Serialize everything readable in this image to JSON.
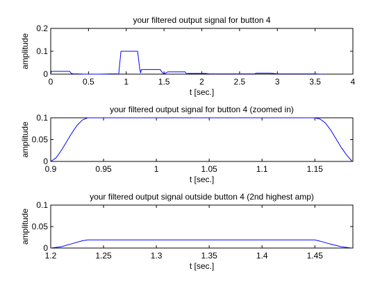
{
  "figure": {
    "background": "#ffffff",
    "line_color": "#0000ff",
    "axis_color": "#000000"
  },
  "chart_data": [
    {
      "type": "line",
      "title": "your filtered output signal for button 4",
      "xlabel": "t [sec.]",
      "ylabel": "amplitude",
      "xlim": [
        0,
        4
      ],
      "ylim": [
        0,
        0.2
      ],
      "xticks": [
        0,
        0.5,
        1,
        1.5,
        2,
        2.5,
        3,
        3.5,
        4
      ],
      "xtick_labels": [
        "0",
        "0.5",
        "1",
        "1.5",
        "2",
        "2.5",
        "3",
        "3.5",
        "4"
      ],
      "yticks": [
        0,
        0.1,
        0.2
      ],
      "ytick_labels": [
        "0",
        "0.1",
        "0.2"
      ],
      "grid": false,
      "series": [
        {
          "color": "#0000ff",
          "x": [
            0.0,
            0.01,
            0.05,
            0.25,
            0.27,
            0.3,
            0.35,
            0.45,
            0.65,
            0.8,
            0.88,
            0.9,
            0.93,
            1.0,
            1.1,
            1.15,
            1.18,
            1.19,
            1.2,
            1.23,
            1.3,
            1.4,
            1.45,
            1.48,
            1.5,
            1.55,
            1.6,
            1.7,
            1.78,
            1.8,
            1.82,
            1.85,
            1.95,
            2.05,
            2.1,
            2.2,
            2.4,
            2.6,
            2.7,
            2.72,
            2.75,
            2.9,
            2.95,
            3.0,
            3.1,
            3.3,
            3.5,
            3.6
          ],
          "y": [
            0.0,
            0.012,
            0.012,
            0.012,
            0.004,
            0.001,
            0.001,
            0.0,
            0.0,
            0.001,
            0.001,
            0.0,
            0.1,
            0.1,
            0.1,
            0.1,
            0.02,
            0.005,
            0.02,
            0.02,
            0.02,
            0.02,
            0.02,
            0.006,
            0.001,
            0.01,
            0.01,
            0.01,
            0.01,
            0.001,
            0.003,
            0.003,
            0.003,
            0.003,
            0.001,
            0.001,
            0.001,
            0.001,
            0.001,
            0.004,
            0.004,
            0.004,
            0.003,
            0.001,
            0.001,
            0.001,
            0.001,
            0.0
          ]
        }
      ]
    },
    {
      "type": "line",
      "title": "your filtered output signal for button 4 (zoomed in)",
      "xlabel": "t [sec.]",
      "ylabel": "amplitude",
      "xlim": [
        0.9,
        1.186
      ],
      "ylim": [
        0,
        0.1
      ],
      "xticks": [
        0.9,
        0.95,
        1,
        1.05,
        1.1,
        1.15
      ],
      "xtick_labels": [
        "0.9",
        "0.95",
        "1",
        "1.05",
        "1.1",
        "1.15"
      ],
      "yticks": [
        0,
        0.05,
        0.1
      ],
      "ytick_labels": [
        "0",
        "0.05",
        "0.1"
      ],
      "grid": false,
      "series": [
        {
          "color": "#0000ff",
          "x": [
            0.9,
            0.905,
            0.91,
            0.915,
            0.92,
            0.925,
            0.93,
            0.935,
            0.95,
            1.0,
            1.05,
            1.1,
            1.15,
            1.155,
            1.16,
            1.165,
            1.17,
            1.175,
            1.18,
            1.185
          ],
          "y": [
            0.0,
            0.008,
            0.025,
            0.045,
            0.065,
            0.083,
            0.095,
            0.1,
            0.1,
            0.1,
            0.1,
            0.1,
            0.1,
            0.097,
            0.088,
            0.072,
            0.052,
            0.032,
            0.015,
            0.001
          ]
        }
      ]
    },
    {
      "type": "line",
      "title": "your filtered output signal outside button 4 (2nd highest amp)",
      "xlabel": "t [sec.]",
      "ylabel": "amplitude",
      "xlim": [
        1.2,
        1.486
      ],
      "ylim": [
        0,
        0.1
      ],
      "xticks": [
        1.2,
        1.25,
        1.3,
        1.35,
        1.4,
        1.45
      ],
      "xtick_labels": [
        "1.2",
        "1.25",
        "1.3",
        "1.35",
        "1.4",
        "1.45"
      ],
      "yticks": [
        0,
        0.05,
        0.1
      ],
      "ytick_labels": [
        "0",
        "0.05",
        "0.1"
      ],
      "grid": false,
      "series": [
        {
          "color": "#0000ff",
          "x": [
            1.2,
            1.21,
            1.22,
            1.23,
            1.235,
            1.3,
            1.4,
            1.45,
            1.455,
            1.465,
            1.475,
            1.485
          ],
          "y": [
            0.0,
            0.003,
            0.01,
            0.017,
            0.019,
            0.019,
            0.019,
            0.019,
            0.016,
            0.009,
            0.003,
            0.0
          ]
        }
      ]
    }
  ]
}
